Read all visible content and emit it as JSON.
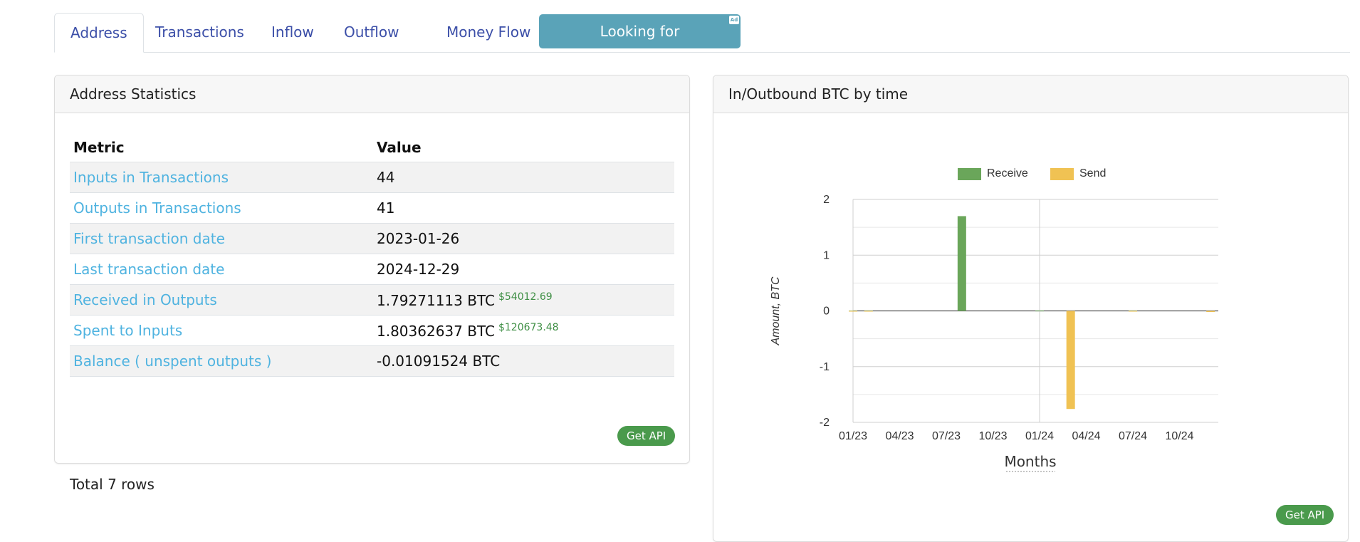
{
  "tabs": [
    {
      "label": "Address",
      "active": true
    },
    {
      "label": "Transactions"
    },
    {
      "label": "Inflow"
    },
    {
      "label": "Outflow"
    },
    {
      "label": "Money Flow"
    }
  ],
  "ad_button": {
    "label": "Looking for Investigators?",
    "badge": "Ad"
  },
  "stats_card": {
    "title": "Address Statistics",
    "columns": [
      "Metric",
      "Value"
    ],
    "rows": [
      {
        "metric": "Inputs in Transactions",
        "value": "44",
        "usd": ""
      },
      {
        "metric": "Outputs in Transactions",
        "value": "41",
        "usd": ""
      },
      {
        "metric": "First transaction date",
        "value": "2023-01-26",
        "usd": ""
      },
      {
        "metric": "Last transaction date",
        "value": "2024-12-29",
        "usd": ""
      },
      {
        "metric": "Received in Outputs",
        "value": "1.79271113 BTC",
        "usd": "$54012.69"
      },
      {
        "metric": "Spent to Inputs",
        "value": "1.80362637 BTC",
        "usd": "$120673.48"
      },
      {
        "metric": "Balance ( unspent outputs )",
        "value": "-0.01091524 BTC",
        "usd": ""
      }
    ],
    "total": "Total 7 rows",
    "api_button": "Get API"
  },
  "chart_card": {
    "title": "In/Outbound BTC by time",
    "api_button": "Get API"
  },
  "chart_data": {
    "type": "bar",
    "title": "In/Outbound BTC by time",
    "xlabel": "Months",
    "ylabel": "Amount, BTC",
    "ylim": [
      -2,
      2
    ],
    "yticks": [
      "2",
      "1",
      "0",
      "-1",
      "-2"
    ],
    "xtick_labels": [
      "01/23",
      "04/23",
      "07/23",
      "10/23",
      "01/24",
      "04/24",
      "07/24",
      "10/24"
    ],
    "legend_position": "top-center",
    "grid": true,
    "series": [
      {
        "name": "Receive",
        "color": "#6aa65a",
        "points": [
          {
            "month": "01/23",
            "value": 0.005
          },
          {
            "month": "02/23",
            "value": 0.005
          },
          {
            "month": "08/23",
            "value": 1.7
          },
          {
            "month": "01/24",
            "value": 0.005
          },
          {
            "month": "07/24",
            "value": 0.005
          }
        ]
      },
      {
        "name": "Send",
        "color": "#f0c253",
        "points": [
          {
            "month": "01/23",
            "value": -0.005
          },
          {
            "month": "02/23",
            "value": -0.005
          },
          {
            "month": "03/24",
            "value": -1.76
          },
          {
            "month": "07/24",
            "value": -0.005
          },
          {
            "month": "12/24",
            "value": -0.02
          }
        ]
      }
    ]
  }
}
